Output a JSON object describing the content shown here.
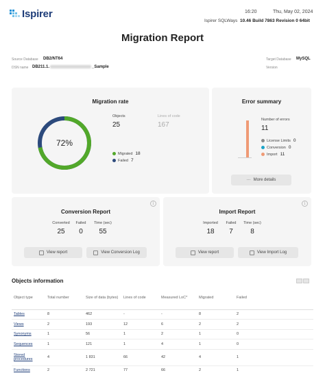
{
  "header": {
    "brand": "Ispirer",
    "time": "16:20",
    "date": "Thu, May 02, 2024",
    "product": "Ispirer SQLWays",
    "version": "10.46 Build 7863 Revision 0 64bit"
  },
  "title": "Migration Report",
  "meta": {
    "source_label": "Source Database",
    "source_value": "DB2/NT64",
    "dsn_label": "DSN name",
    "dsn_prefix": "DB211.1.",
    "dsn_suffix": "_Sample",
    "target_label": "Target Database",
    "target_value": "MySQL",
    "version_label": "Version"
  },
  "migration_rate": {
    "title": "Migration rate",
    "percent_label": "72%",
    "percent": 72,
    "objects_label": "Objects",
    "objects_value": "25",
    "loc_label": "Lines of code",
    "loc_value": "167",
    "migrated_label": "Migrated",
    "migrated_value": "18",
    "failed_label": "Failed",
    "failed_value": "7",
    "colors": {
      "migrated": "#52a82a",
      "failed": "#2c4a7c"
    }
  },
  "error_summary": {
    "title": "Error summary",
    "count_label": "Number of errors",
    "count_value": "11",
    "items": [
      {
        "label": "License Limits",
        "value": "0",
        "color": "#8a8a8a"
      },
      {
        "label": "Conversion",
        "value": "0",
        "color": "#1aa3c8"
      },
      {
        "label": "Import",
        "value": "11",
        "color": "#ef9a75"
      }
    ],
    "details_button": "More details"
  },
  "conversion_report": {
    "title": "Conversion Report",
    "converted_label": "Converted",
    "converted_value": "25",
    "failed_label": "Failed",
    "failed_value": "0",
    "time_label": "Time (sec)",
    "time_value": "55",
    "view_report": "View report",
    "view_log": "View Conversion Log"
  },
  "import_report": {
    "title": "Import Report",
    "imported_label": "Imported",
    "imported_value": "18",
    "failed_label": "Failed",
    "failed_value": "7",
    "time_label": "Time (sec)",
    "time_value": "8",
    "view_report": "View report",
    "view_log": "View Import Log"
  },
  "objects": {
    "title": "Objects information",
    "columns": [
      "Object type",
      "Total number",
      "Size of data (bytes)",
      "Lines of code",
      "Measured LoC*",
      "Migrated",
      "Failed"
    ],
    "rows": [
      [
        "Tables",
        "8",
        "462",
        "-",
        "-",
        "8",
        "2"
      ],
      [
        "Views",
        "2",
        "193",
        "12",
        "6",
        "2",
        "2"
      ],
      [
        "Synonyms",
        "1",
        "56",
        "1",
        "2",
        "1",
        "0"
      ],
      [
        "Sequences",
        "1",
        "121",
        "1",
        "4",
        "1",
        "0"
      ],
      [
        "Stored procedures",
        "4",
        "1 831",
        "66",
        "42",
        "4",
        "1"
      ],
      [
        "Functions",
        "2",
        "2 721",
        "77",
        "66",
        "2",
        "1"
      ]
    ]
  }
}
